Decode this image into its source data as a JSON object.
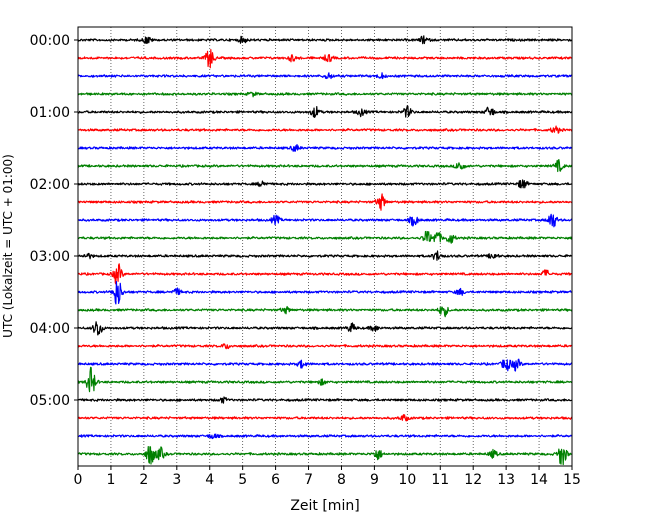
{
  "chart_data": {
    "type": "line",
    "xlabel": "Zeit  [min]",
    "ylabel": "UTC (Lokalzeit = UTC + 01:00)",
    "xlim": [
      0,
      15
    ],
    "xticks": [
      "0",
      "1",
      "2",
      "3",
      "4",
      "5",
      "6",
      "7",
      "8",
      "9",
      "10",
      "11",
      "12",
      "13",
      "14",
      "15"
    ],
    "yticks": [
      "00:00",
      "01:00",
      "02:00",
      "03:00",
      "04:00",
      "05:00"
    ],
    "grid": "vertical dotted",
    "colors": [
      "#000000",
      "#ff0000",
      "#0000ff",
      "#008000"
    ],
    "traces": [
      {
        "start": "00:00",
        "events": [
          [
            2.1,
            0.6
          ],
          [
            5.0,
            0.5
          ],
          [
            10.5,
            0.6
          ]
        ]
      },
      {
        "start": "00:15",
        "events": [
          [
            4.0,
            1.6
          ],
          [
            6.5,
            0.5
          ],
          [
            7.6,
            0.6
          ]
        ]
      },
      {
        "start": "00:30",
        "events": [
          [
            7.6,
            0.5
          ],
          [
            9.2,
            0.4
          ]
        ]
      },
      {
        "start": "00:45",
        "events": [
          [
            5.3,
            0.3
          ]
        ]
      },
      {
        "start": "01:00",
        "events": [
          [
            7.2,
            0.9
          ],
          [
            8.6,
            0.6
          ],
          [
            10.0,
            0.9
          ],
          [
            12.5,
            0.9
          ]
        ]
      },
      {
        "start": "01:15",
        "events": [
          [
            14.5,
            0.6
          ]
        ]
      },
      {
        "start": "01:30",
        "events": [
          [
            6.6,
            0.5
          ]
        ]
      },
      {
        "start": "01:45",
        "events": [
          [
            11.6,
            0.8
          ],
          [
            14.6,
            0.9
          ]
        ]
      },
      {
        "start": "02:00",
        "events": [
          [
            5.6,
            0.5
          ],
          [
            13.5,
            0.8
          ]
        ]
      },
      {
        "start": "02:15",
        "events": [
          [
            9.2,
            1.3
          ]
        ]
      },
      {
        "start": "02:30",
        "events": [
          [
            6.0,
            0.7
          ],
          [
            10.2,
            0.9
          ],
          [
            14.4,
            1.4
          ]
        ]
      },
      {
        "start": "02:45",
        "events": [
          [
            10.6,
            1.1
          ],
          [
            10.9,
            1.1
          ],
          [
            11.3,
            0.9
          ]
        ]
      },
      {
        "start": "03:00",
        "events": [
          [
            0.3,
            0.4
          ],
          [
            10.9,
            0.8
          ],
          [
            12.6,
            0.5
          ]
        ]
      },
      {
        "start": "03:15",
        "events": [
          [
            1.2,
            1.8
          ],
          [
            14.2,
            0.6
          ]
        ]
      },
      {
        "start": "03:30",
        "events": [
          [
            1.2,
            2.4
          ],
          [
            3.0,
            0.5
          ],
          [
            11.6,
            0.5
          ]
        ]
      },
      {
        "start": "03:45",
        "events": [
          [
            6.3,
            0.5
          ],
          [
            11.1,
            1.1
          ]
        ]
      },
      {
        "start": "04:00",
        "events": [
          [
            0.6,
            1.5
          ],
          [
            8.3,
            0.7
          ],
          [
            9.0,
            0.5
          ]
        ]
      },
      {
        "start": "04:15",
        "events": [
          [
            4.5,
            0.4
          ]
        ]
      },
      {
        "start": "04:30",
        "events": [
          [
            6.8,
            0.6
          ],
          [
            13.0,
            1.1
          ],
          [
            13.3,
            1.0
          ]
        ]
      },
      {
        "start": "04:45",
        "events": [
          [
            0.4,
            2.4
          ],
          [
            7.4,
            0.4
          ]
        ]
      },
      {
        "start": "05:00",
        "events": [
          [
            4.4,
            0.4
          ]
        ]
      },
      {
        "start": "05:15",
        "events": [
          [
            9.9,
            0.5
          ]
        ]
      },
      {
        "start": "05:30",
        "events": [
          [
            4.1,
            0.4
          ]
        ]
      },
      {
        "start": "05:45",
        "events": [
          [
            2.2,
            1.8
          ],
          [
            2.5,
            1.0
          ],
          [
            9.1,
            0.9
          ],
          [
            12.6,
            0.6
          ],
          [
            14.7,
            2.0
          ]
        ]
      }
    ]
  }
}
